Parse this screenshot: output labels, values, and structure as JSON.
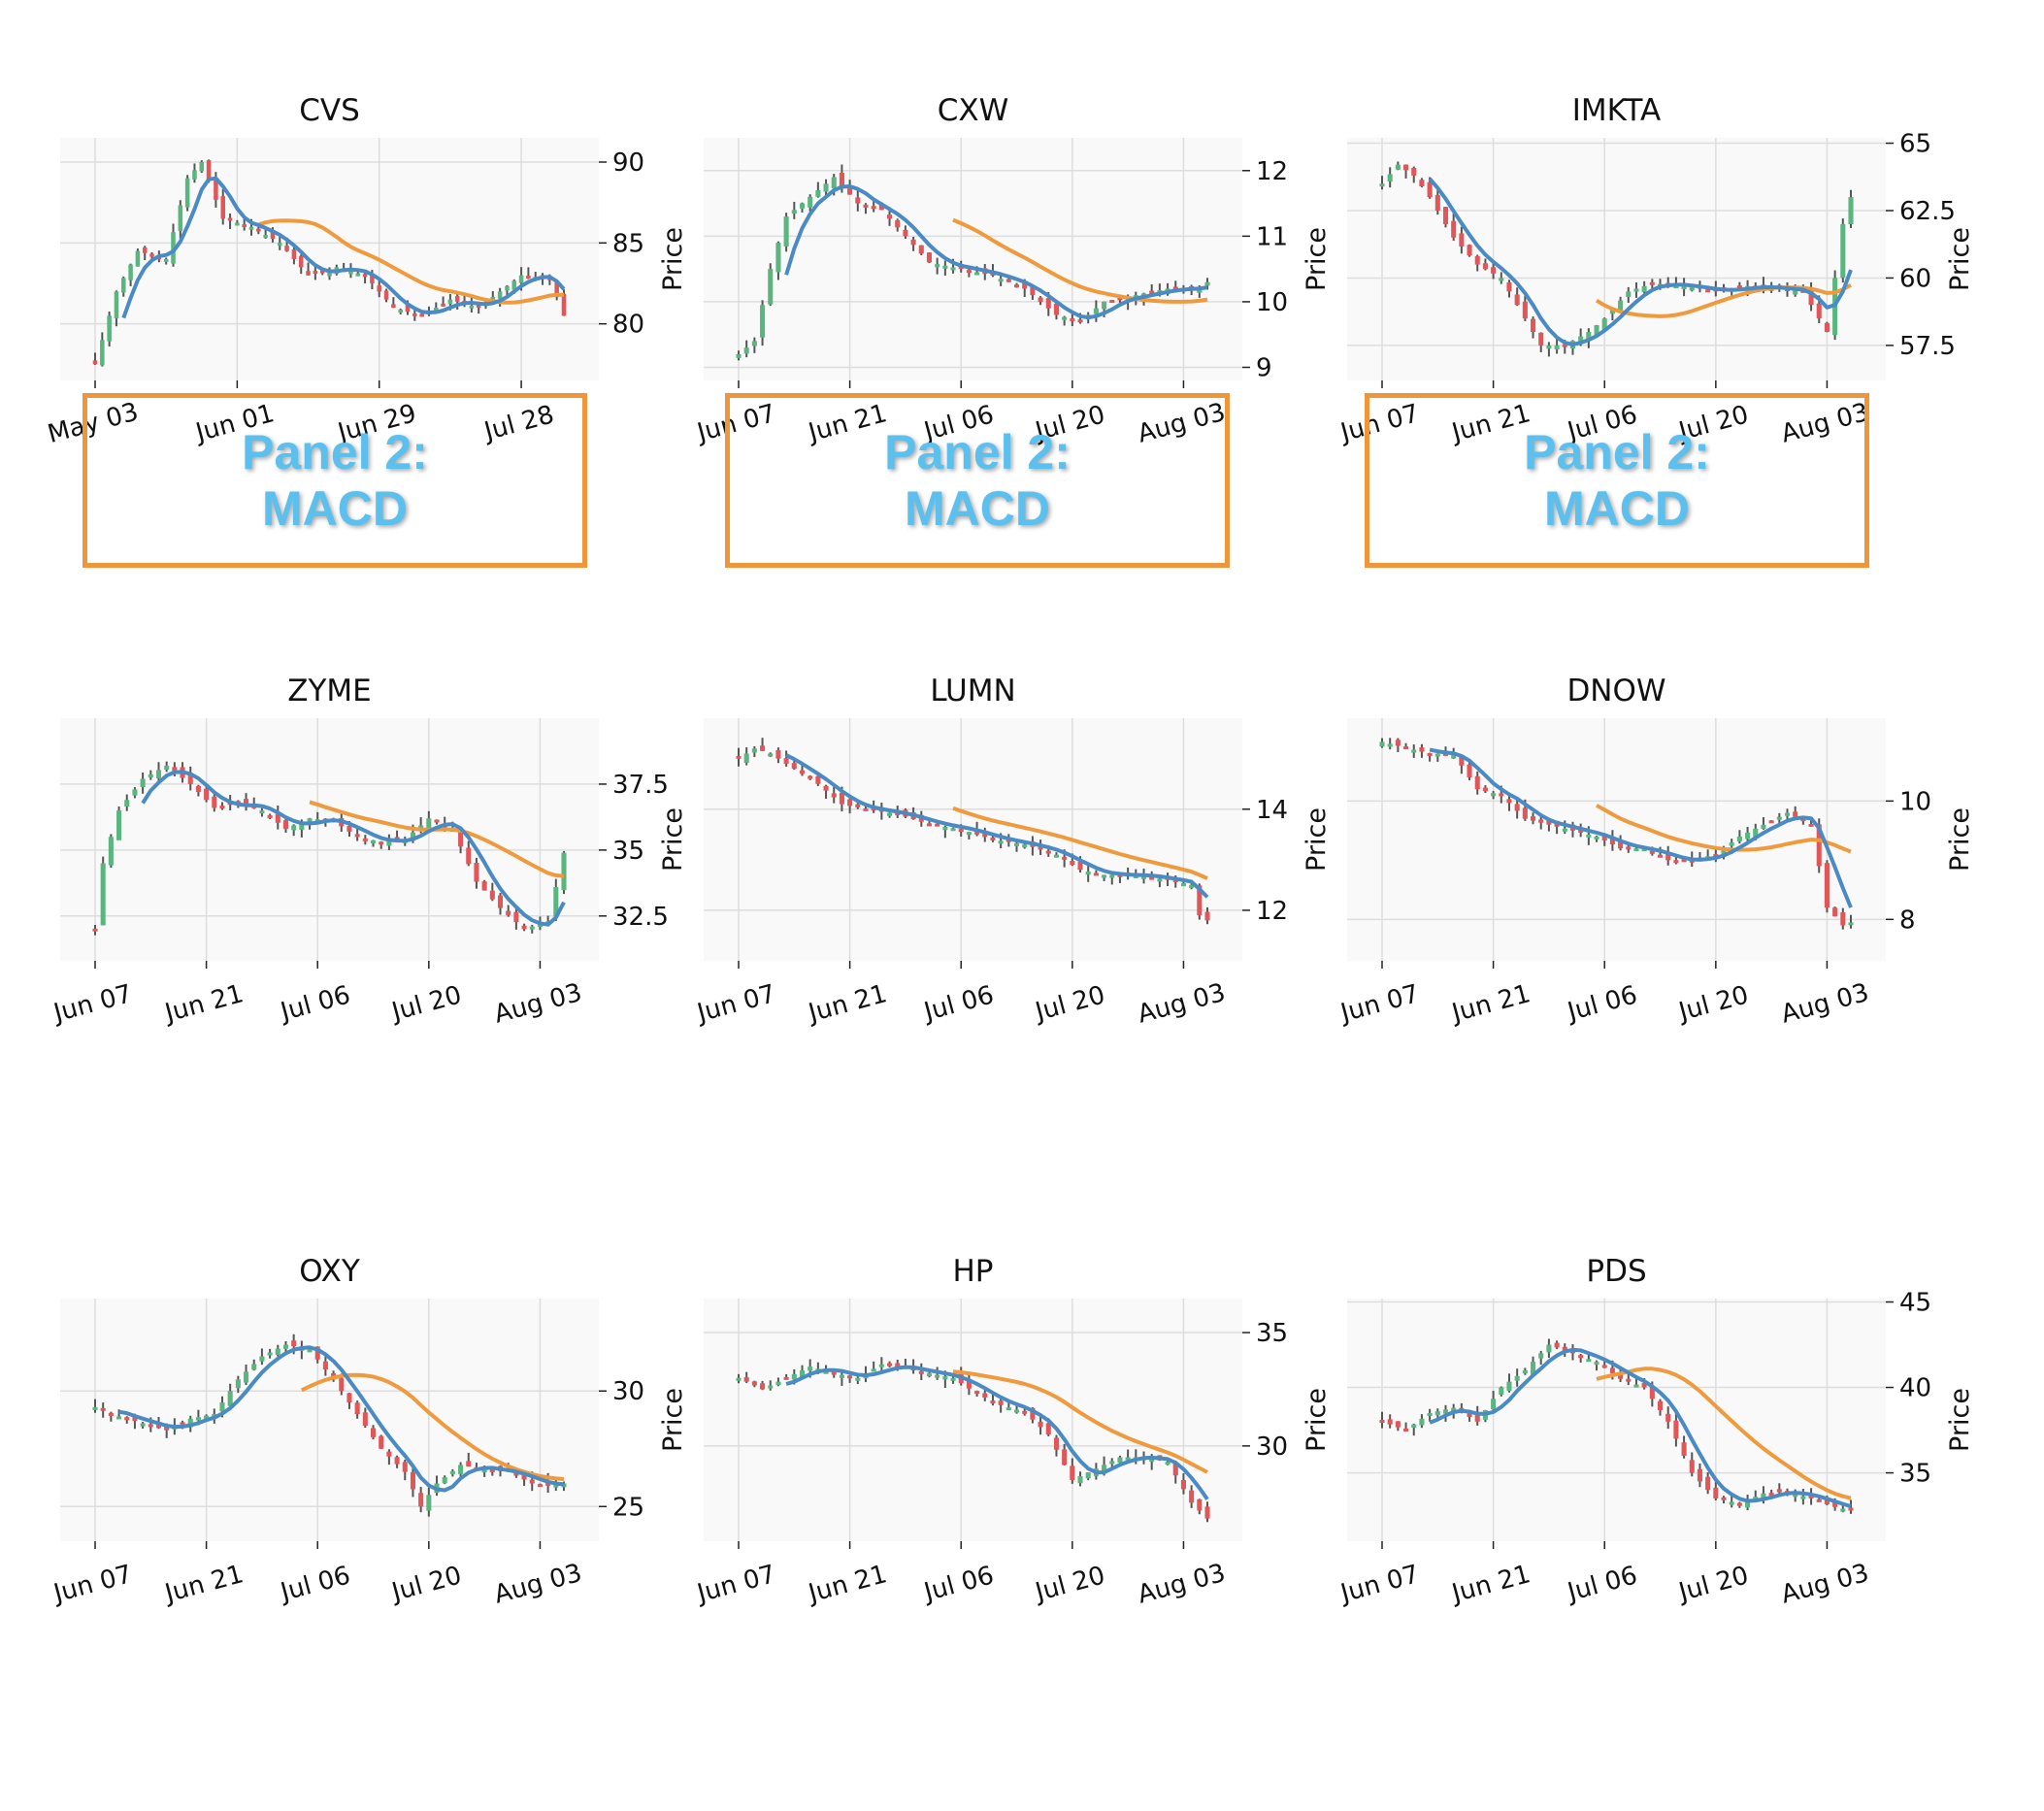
{
  "colors": {
    "up": "#5bb57e",
    "down": "#e15759",
    "wick": "#555555",
    "fast_line": "#4a8bc4",
    "slow_line": "#f09a3e",
    "plot_bg": "#f9f9f9",
    "grid": "#dddddd",
    "macd_border": "#f0953a",
    "macd_text": "#5bc0ee"
  },
  "macd_placeholders": [
    {
      "text": "Panel 2:\nMACD"
    },
    {
      "text": "Panel 2:\nMACD"
    },
    {
      "text": "Panel 2:\nMACD"
    }
  ],
  "chart_data": [
    {
      "type": "candlestick",
      "title": "CVS",
      "ylabel": "Price",
      "x_ticks": [
        "May 03",
        "Jun 01",
        "Jun 29",
        "Jul 28"
      ],
      "x_tick_positions": [
        0,
        20,
        40,
        60
      ],
      "n": 67,
      "ylim": [
        76.5,
        91.5
      ],
      "y_ticks": [
        80,
        85,
        90
      ],
      "keypoints": [
        [
          0,
          77.5
        ],
        [
          3,
          82
        ],
        [
          6,
          84.5
        ],
        [
          10,
          84
        ],
        [
          13,
          89
        ],
        [
          15,
          90
        ],
        [
          18,
          86.5
        ],
        [
          22,
          86
        ],
        [
          26,
          85
        ],
        [
          30,
          83
        ],
        [
          34,
          83.5
        ],
        [
          38,
          83
        ],
        [
          42,
          81
        ],
        [
          46,
          80.5
        ],
        [
          50,
          81.5
        ],
        [
          54,
          81
        ],
        [
          57,
          82
        ],
        [
          60,
          83
        ],
        [
          64,
          82.8
        ],
        [
          66,
          80.5
        ]
      ],
      "fast_start": 4,
      "slow_start": 23
    },
    {
      "type": "candlestick",
      "title": "CXW",
      "ylabel": "Price",
      "x_ticks": [
        "Jun 07",
        "Jun 21",
        "Jul 06",
        "Jul 20",
        "Aug 03"
      ],
      "x_tick_positions": [
        0,
        14,
        28,
        42,
        56
      ],
      "n": 60,
      "ylim": [
        8.8,
        12.5
      ],
      "y_ticks": [
        9,
        10,
        11,
        12
      ],
      "keypoints": [
        [
          0,
          9.2
        ],
        [
          2,
          9.4
        ],
        [
          4,
          10.5
        ],
        [
          6,
          11.3
        ],
        [
          9,
          11.6
        ],
        [
          12,
          11.9
        ],
        [
          15,
          11.5
        ],
        [
          18,
          11.4
        ],
        [
          21,
          11.0
        ],
        [
          24,
          10.6
        ],
        [
          28,
          10.5
        ],
        [
          32,
          10.4
        ],
        [
          36,
          10.2
        ],
        [
          40,
          9.8
        ],
        [
          43,
          9.7
        ],
        [
          46,
          10.0
        ],
        [
          50,
          10.1
        ],
        [
          54,
          10.2
        ],
        [
          58,
          10.2
        ],
        [
          59,
          10.3
        ]
      ],
      "fast_start": 6,
      "slow_start": 27
    },
    {
      "type": "candlestick",
      "title": "IMKTA",
      "ylabel": "Price",
      "x_ticks": [
        "Jun 07",
        "Jun 21",
        "Jul 06",
        "Jul 20",
        "Aug 03"
      ],
      "x_tick_positions": [
        0,
        14,
        28,
        42,
        56
      ],
      "n": 60,
      "ylim": [
        56.2,
        65.2
      ],
      "y_ticks": [
        57.5,
        60.0,
        62.5,
        65.0
      ],
      "keypoints": [
        [
          0,
          63.5
        ],
        [
          2,
          64.2
        ],
        [
          4,
          63.8
        ],
        [
          6,
          63.0
        ],
        [
          9,
          61.5
        ],
        [
          12,
          60.5
        ],
        [
          15,
          60.0
        ],
        [
          18,
          58.5
        ],
        [
          20,
          57.5
        ],
        [
          23,
          57.5
        ],
        [
          26,
          58.0
        ],
        [
          28,
          58.5
        ],
        [
          31,
          59.5
        ],
        [
          34,
          59.8
        ],
        [
          38,
          59.7
        ],
        [
          42,
          59.5
        ],
        [
          46,
          59.7
        ],
        [
          50,
          59.6
        ],
        [
          53,
          59.5
        ],
        [
          56,
          58.0
        ],
        [
          58,
          62.0
        ],
        [
          59,
          63.0
        ]
      ],
      "fast_start": 6,
      "slow_start": 27
    },
    {
      "type": "candlestick",
      "title": "ZYME",
      "ylabel": "Price",
      "x_ticks": [
        "Jun 07",
        "Jun 21",
        "Jul 06",
        "Jul 20",
        "Aug 03"
      ],
      "x_tick_positions": [
        0,
        14,
        28,
        42,
        56
      ],
      "n": 60,
      "ylim": [
        30.8,
        40.0
      ],
      "y_ticks": [
        32.5,
        35.0,
        37.5
      ],
      "keypoints": [
        [
          0,
          32.0
        ],
        [
          1,
          34.5
        ],
        [
          3,
          36.5
        ],
        [
          6,
          37.7
        ],
        [
          9,
          38.2
        ],
        [
          12,
          37.5
        ],
        [
          15,
          36.6
        ],
        [
          18,
          36.8
        ],
        [
          21,
          36.5
        ],
        [
          24,
          35.8
        ],
        [
          27,
          36.2
        ],
        [
          30,
          36.1
        ],
        [
          33,
          35.5
        ],
        [
          36,
          35.3
        ],
        [
          39,
          35.4
        ],
        [
          42,
          36.2
        ],
        [
          45,
          35.8
        ],
        [
          48,
          33.8
        ],
        [
          51,
          32.8
        ],
        [
          54,
          32.0
        ],
        [
          57,
          32.3
        ],
        [
          59,
          34.9
        ]
      ],
      "fast_start": 6,
      "slow_start": 27
    },
    {
      "type": "candlestick",
      "title": "LUMN",
      "ylabel": "Price",
      "x_ticks": [
        "Jun 07",
        "Jun 21",
        "Jul 06",
        "Jul 20",
        "Aug 03"
      ],
      "x_tick_positions": [
        0,
        14,
        28,
        42,
        56
      ],
      "n": 60,
      "ylim": [
        11.0,
        15.8
      ],
      "y_ticks": [
        12,
        14
      ],
      "keypoints": [
        [
          0,
          15.0
        ],
        [
          2,
          15.2
        ],
        [
          4,
          15.1
        ],
        [
          7,
          14.8
        ],
        [
          10,
          14.5
        ],
        [
          13,
          14.1
        ],
        [
          16,
          14.0
        ],
        [
          20,
          13.9
        ],
        [
          24,
          13.7
        ],
        [
          28,
          13.6
        ],
        [
          32,
          13.4
        ],
        [
          36,
          13.3
        ],
        [
          40,
          13.1
        ],
        [
          43,
          12.8
        ],
        [
          46,
          12.7
        ],
        [
          50,
          12.7
        ],
        [
          54,
          12.6
        ],
        [
          57,
          12.5
        ],
        [
          58,
          11.9
        ],
        [
          59,
          11.8
        ]
      ],
      "fast_start": 6,
      "slow_start": 27
    },
    {
      "type": "candlestick",
      "title": "DNOW",
      "ylabel": "Price",
      "x_ticks": [
        "Jun 07",
        "Jun 21",
        "Jul 06",
        "Jul 20",
        "Aug 03"
      ],
      "x_tick_positions": [
        0,
        14,
        28,
        42,
        56
      ],
      "n": 60,
      "ylim": [
        7.3,
        11.4
      ],
      "y_ticks": [
        8,
        10
      ],
      "keypoints": [
        [
          0,
          11.0
        ],
        [
          3,
          10.9
        ],
        [
          6,
          10.8
        ],
        [
          9,
          10.8
        ],
        [
          12,
          10.2
        ],
        [
          15,
          10.1
        ],
        [
          18,
          9.7
        ],
        [
          21,
          9.6
        ],
        [
          24,
          9.5
        ],
        [
          27,
          9.4
        ],
        [
          30,
          9.2
        ],
        [
          33,
          9.2
        ],
        [
          36,
          9.0
        ],
        [
          39,
          9.0
        ],
        [
          42,
          9.1
        ],
        [
          45,
          9.4
        ],
        [
          48,
          9.6
        ],
        [
          51,
          9.8
        ],
        [
          54,
          9.6
        ],
        [
          56,
          8.2
        ],
        [
          58,
          7.9
        ],
        [
          59,
          7.95
        ]
      ],
      "fast_start": 6,
      "slow_start": 27
    },
    {
      "type": "candlestick",
      "title": "OXY",
      "ylabel": "Price",
      "x_ticks": [
        "Jun 07",
        "Jun 21",
        "Jul 06",
        "Jul 20",
        "Aug 03"
      ],
      "x_tick_positions": [
        0,
        14,
        28,
        42,
        56
      ],
      "n": 60,
      "ylim": [
        23.5,
        34.0
      ],
      "y_ticks": [
        25,
        30
      ],
      "keypoints": [
        [
          0,
          29.3
        ],
        [
          3,
          28.9
        ],
        [
          6,
          28.6
        ],
        [
          9,
          28.3
        ],
        [
          12,
          28.8
        ],
        [
          15,
          29.0
        ],
        [
          18,
          30.5
        ],
        [
          21,
          31.5
        ],
        [
          24,
          32.0
        ],
        [
          27,
          31.8
        ],
        [
          30,
          30.5
        ],
        [
          33,
          29.0
        ],
        [
          36,
          27.5
        ],
        [
          39,
          26.5
        ],
        [
          41,
          25.0
        ],
        [
          43,
          26.0
        ],
        [
          46,
          26.8
        ],
        [
          49,
          26.6
        ],
        [
          52,
          26.5
        ],
        [
          55,
          26.0
        ],
        [
          57,
          25.9
        ],
        [
          59,
          26.0
        ]
      ],
      "fast_start": 3,
      "slow_start": 26
    },
    {
      "type": "candlestick",
      "title": "HP",
      "ylabel": "Price",
      "x_ticks": [
        "Jun 07",
        "Jun 21",
        "Jul 06",
        "Jul 20",
        "Aug 03"
      ],
      "x_tick_positions": [
        0,
        14,
        28,
        42,
        56
      ],
      "n": 60,
      "ylim": [
        25.8,
        36.5
      ],
      "y_ticks": [
        30,
        35
      ],
      "keypoints": [
        [
          0,
          33.0
        ],
        [
          3,
          32.5
        ],
        [
          6,
          33.0
        ],
        [
          9,
          33.5
        ],
        [
          12,
          33.2
        ],
        [
          15,
          33.0
        ],
        [
          18,
          33.6
        ],
        [
          21,
          33.4
        ],
        [
          24,
          33.2
        ],
        [
          27,
          33.0
        ],
        [
          30,
          32.3
        ],
        [
          33,
          31.8
        ],
        [
          36,
          31.5
        ],
        [
          39,
          30.5
        ],
        [
          42,
          28.5
        ],
        [
          45,
          29.0
        ],
        [
          48,
          29.5
        ],
        [
          51,
          29.5
        ],
        [
          54,
          29.3
        ],
        [
          57,
          27.5
        ],
        [
          59,
          26.8
        ]
      ],
      "fast_start": 6,
      "slow_start": 27
    },
    {
      "type": "candlestick",
      "title": "PDS",
      "ylabel": "Price",
      "x_ticks": [
        "Jun 07",
        "Jun 21",
        "Jul 06",
        "Jul 20",
        "Aug 03"
      ],
      "x_tick_positions": [
        0,
        14,
        28,
        42,
        56
      ],
      "n": 60,
      "ylim": [
        31.0,
        45.2
      ],
      "y_ticks": [
        35,
        40,
        45
      ],
      "keypoints": [
        [
          0,
          38.0
        ],
        [
          3,
          37.5
        ],
        [
          6,
          38.5
        ],
        [
          9,
          38.8
        ],
        [
          12,
          38.0
        ],
        [
          15,
          40.0
        ],
        [
          18,
          41.0
        ],
        [
          21,
          42.5
        ],
        [
          24,
          42.0
        ],
        [
          27,
          41.5
        ],
        [
          30,
          40.5
        ],
        [
          33,
          40.0
        ],
        [
          36,
          38.0
        ],
        [
          39,
          35.0
        ],
        [
          42,
          33.5
        ],
        [
          45,
          33.2
        ],
        [
          48,
          33.8
        ],
        [
          51,
          33.9
        ],
        [
          54,
          33.5
        ],
        [
          57,
          33.0
        ],
        [
          59,
          32.8
        ]
      ],
      "fast_start": 6,
      "slow_start": 27
    }
  ]
}
